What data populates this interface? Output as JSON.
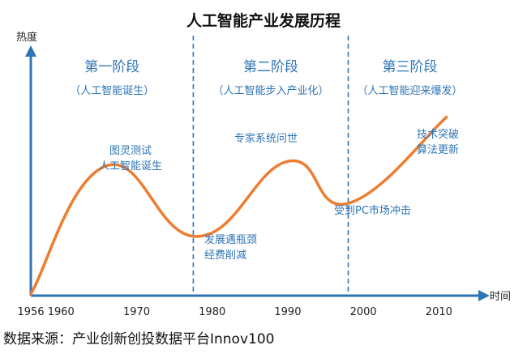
{
  "chart_data": {
    "type": "line",
    "title": "人工智能产业发展历程",
    "ylabel": "热度",
    "xlabel": "时间",
    "x_ticks": [
      "1956",
      "1960",
      "1970",
      "1980",
      "1990",
      "2000",
      "2010"
    ],
    "xlim": [
      1956,
      2014
    ],
    "grid": false,
    "series": [
      {
        "values": [
          {
            "x": 1956,
            "y": 0
          },
          {
            "x": 1966,
            "y": 58
          },
          {
            "x": 1978,
            "y": 26
          },
          {
            "x": 1990,
            "y": 60
          },
          {
            "x": 1998,
            "y": 41
          },
          {
            "x": 2011,
            "y": 80
          }
        ]
      }
    ],
    "stages": [
      {
        "name": "第一阶段",
        "desc": "（人工智能诞生）"
      },
      {
        "name": "第二阶段",
        "desc": "（人工智能步入产业化）"
      },
      {
        "name": "第三阶段",
        "desc": "（人工智能迎来爆发）"
      }
    ],
    "stage_boundaries": [
      1977.5,
      1998
    ],
    "annotations": [
      {
        "lines": [
          "图灵测试",
          "人工智能诞生"
        ]
      },
      {
        "lines": [
          "发展遇瓶颈",
          "经费削减"
        ]
      },
      {
        "lines": [
          "专家系统问世"
        ]
      },
      {
        "lines": [
          "受到PC市场冲击"
        ]
      },
      {
        "lines": [
          "技术突破",
          "算法更新"
        ]
      }
    ],
    "colors": {
      "curve": "#ed7d31",
      "axis": "#2e75b6",
      "divider": "#2e75b6",
      "text_accent": "#2e75b6"
    }
  },
  "footer": {
    "source": "数据来源：产业创新创投数据平台Innov100"
  }
}
